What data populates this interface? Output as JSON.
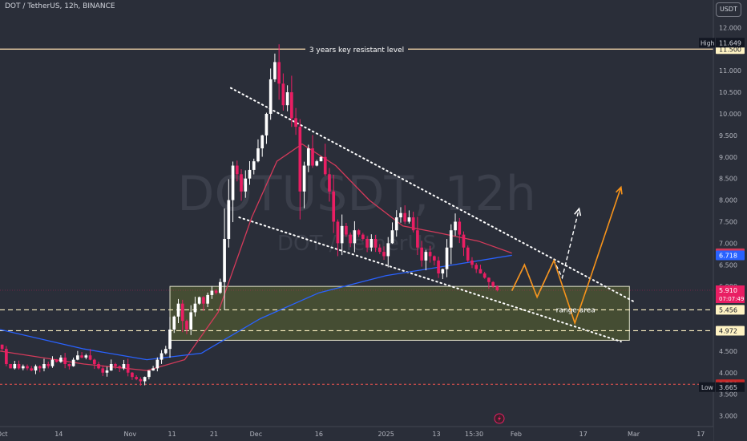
{
  "header": {
    "symbol_title": "DOT / TetherUS, 12h, BINANCE",
    "currency_badge": "USDT"
  },
  "watermark": {
    "symbol": "DOTUSDT, 12h",
    "pair": "DOT / TetherUS"
  },
  "colors": {
    "background": "#2a2e39",
    "candle_up": "#ffffff",
    "candle_down": "#e91e63",
    "ma_blue": "#2962ff",
    "ma_red": "#d43a5a",
    "resistance_line": "#ffe0b2",
    "range_fill": "#4a5233",
    "projection_orange": "#f7931a",
    "projection_white": "#ffffff",
    "low_line": "#ef5350"
  },
  "chart_data": {
    "type": "candlestick",
    "title": "DOT / TetherUS, 12h, BINANCE",
    "ylim": [
      2.9,
      12.3
    ],
    "y_ticks": [
      "12.000",
      "11.500",
      "11.000",
      "10.500",
      "10.000",
      "9.500",
      "9.000",
      "8.500",
      "8.000",
      "7.500",
      "7.000",
      "6.500",
      "6.000",
      "5.500",
      "5.000",
      "4.500",
      "4.000",
      "3.500",
      "3.000"
    ],
    "x_ticks": [
      {
        "label": "Oct",
        "t": 0.5
      },
      {
        "label": "14",
        "t": 14
      },
      {
        "label": "Nov",
        "t": 31
      },
      {
        "label": "11",
        "t": 41
      },
      {
        "label": "21",
        "t": 51
      },
      {
        "label": "Dec",
        "t": 61
      },
      {
        "label": "16",
        "t": 76
      },
      {
        "label": "2025",
        "t": 92
      },
      {
        "label": "13",
        "t": 104
      },
      {
        "label": "15:30",
        "t": 113
      },
      {
        "label": "Feb",
        "t": 123
      },
      {
        "label": "17",
        "t": 139
      },
      {
        "label": "Mar",
        "t": 151
      },
      {
        "label": "17",
        "t": 167
      }
    ],
    "price_path": [
      [
        0,
        4.55
      ],
      [
        1,
        4.2
      ],
      [
        2,
        4.1
      ],
      [
        3,
        4.2
      ],
      [
        4,
        4.1
      ],
      [
        5,
        4.15
      ],
      [
        6,
        4.1
      ],
      [
        7,
        4.05
      ],
      [
        8,
        4.15
      ],
      [
        9,
        4.1
      ],
      [
        10,
        4.2
      ],
      [
        11,
        4.15
      ],
      [
        12,
        4.3
      ],
      [
        13,
        4.25
      ],
      [
        14,
        4.35
      ],
      [
        15,
        4.2
      ],
      [
        16,
        4.15
      ],
      [
        17,
        4.3
      ],
      [
        18,
        4.4
      ],
      [
        19,
        4.35
      ],
      [
        20,
        4.4
      ],
      [
        21,
        4.3
      ],
      [
        22,
        4.2
      ],
      [
        23,
        4.1
      ],
      [
        24,
        4.0
      ],
      [
        25,
        4.05
      ],
      [
        26,
        4.2
      ],
      [
        27,
        4.15
      ],
      [
        28,
        4.1
      ],
      [
        29,
        4.2
      ],
      [
        30,
        4.0
      ],
      [
        31,
        3.9
      ],
      [
        32,
        3.85
      ],
      [
        33,
        3.8
      ],
      [
        34,
        3.9
      ],
      [
        35,
        4.05
      ],
      [
        36,
        4.1
      ],
      [
        37,
        4.3
      ],
      [
        38,
        4.45
      ],
      [
        39,
        4.55
      ],
      [
        40,
        5.0
      ],
      [
        41,
        5.3
      ],
      [
        42,
        5.6
      ],
      [
        43,
        5.2
      ],
      [
        44,
        5.0
      ],
      [
        45,
        5.4
      ],
      [
        46,
        5.6
      ],
      [
        47,
        5.75
      ],
      [
        48,
        5.6
      ],
      [
        49,
        5.8
      ],
      [
        50,
        5.9
      ],
      [
        51,
        5.85
      ],
      [
        52,
        6.1
      ],
      [
        53,
        7.1
      ],
      [
        54,
        8.0
      ],
      [
        55,
        8.8
      ],
      [
        56,
        8.6
      ],
      [
        57,
        8.2
      ],
      [
        58,
        8.5
      ],
      [
        59,
        8.7
      ],
      [
        60,
        8.9
      ],
      [
        61,
        9.2
      ],
      [
        62,
        9.5
      ],
      [
        63,
        10.0
      ],
      [
        64,
        10.8
      ],
      [
        65,
        11.2
      ],
      [
        66,
        10.7
      ],
      [
        67,
        10.2
      ],
      [
        68,
        10.5
      ],
      [
        69,
        9.9
      ],
      [
        70,
        9.7
      ],
      [
        71,
        8.2
      ],
      [
        72,
        8.8
      ],
      [
        73,
        9.2
      ],
      [
        74,
        8.8
      ],
      [
        75,
        8.9
      ],
      [
        76,
        9.0
      ],
      [
        77,
        8.6
      ],
      [
        78,
        8.2
      ],
      [
        79,
        7.5
      ],
      [
        80,
        7.0
      ],
      [
        81,
        7.4
      ],
      [
        82,
        7.2
      ],
      [
        83,
        7.0
      ],
      [
        84,
        7.3
      ],
      [
        85,
        7.2
      ],
      [
        86,
        7.1
      ],
      [
        87,
        6.9
      ],
      [
        88,
        7.1
      ],
      [
        89,
        6.9
      ],
      [
        90,
        6.8
      ],
      [
        91,
        6.7
      ],
      [
        92,
        7.0
      ],
      [
        93,
        7.3
      ],
      [
        94,
        7.6
      ],
      [
        95,
        7.7
      ],
      [
        96,
        7.5
      ],
      [
        97,
        7.6
      ],
      [
        98,
        7.3
      ],
      [
        99,
        6.9
      ],
      [
        100,
        6.6
      ],
      [
        101,
        6.8
      ],
      [
        102,
        6.7
      ],
      [
        103,
        6.6
      ],
      [
        104,
        6.3
      ],
      [
        105,
        6.4
      ],
      [
        106,
        6.9
      ],
      [
        107,
        7.3
      ],
      [
        108,
        7.5
      ],
      [
        109,
        7.2
      ],
      [
        110,
        6.9
      ],
      [
        111,
        6.6
      ],
      [
        112,
        6.5
      ],
      [
        113,
        6.4
      ],
      [
        114,
        6.3
      ],
      [
        115,
        6.2
      ],
      [
        116,
        6.1
      ],
      [
        117,
        6.0
      ],
      [
        118,
        5.91
      ]
    ],
    "current_price": "5.910",
    "countdown": "07:07:49",
    "resistance": {
      "value": 11.5,
      "label": "3 years key resistant level"
    },
    "high": {
      "label": "High",
      "value": "11.649"
    },
    "low": {
      "label": "Low",
      "value": "3.665"
    },
    "price_tags": [
      {
        "value": 11.5,
        "text": "11.500",
        "type": "key"
      },
      {
        "value": 5.456,
        "text": "5.456",
        "type": "key"
      },
      {
        "value": 4.972,
        "text": "4.972",
        "type": "key"
      },
      {
        "value": 6.768,
        "text": "6.768",
        "type": "red"
      },
      {
        "value": 6.718,
        "text": "6.718",
        "type": "blue"
      },
      {
        "value": 3.73,
        "text": "3.730",
        "type": "lowred"
      }
    ],
    "dashed_levels": [
      5.456,
      4.972
    ],
    "low_dashed_level": 3.73,
    "range_area": {
      "t_start": 40.5,
      "t_end": 150,
      "top": 6.0,
      "bottom": 4.75,
      "label": "range area"
    },
    "channel_upper": {
      "from": [
        55,
        10.6
      ],
      "to": [
        151,
        5.65
      ]
    },
    "channel_lower": {
      "from": [
        57,
        7.6
      ],
      "to": [
        148,
        4.72
      ]
    },
    "ma_blue": [
      [
        0,
        5.0
      ],
      [
        20,
        4.55
      ],
      [
        35,
        4.3
      ],
      [
        48,
        4.45
      ],
      [
        62,
        5.25
      ],
      [
        76,
        5.85
      ],
      [
        92,
        6.25
      ],
      [
        105,
        6.45
      ],
      [
        122,
        6.72
      ]
    ],
    "ma_red": [
      [
        0,
        4.5
      ],
      [
        20,
        4.2
      ],
      [
        35,
        4.05
      ],
      [
        44,
        4.3
      ],
      [
        52,
        5.4
      ],
      [
        60,
        7.6
      ],
      [
        66,
        8.9
      ],
      [
        72,
        9.3
      ],
      [
        80,
        8.8
      ],
      [
        88,
        8.0
      ],
      [
        96,
        7.4
      ],
      [
        104,
        7.25
      ],
      [
        114,
        7.05
      ],
      [
        122,
        6.77
      ]
    ],
    "projection_orange": [
      [
        122,
        5.9
      ],
      [
        125,
        6.5
      ],
      [
        128,
        5.75
      ],
      [
        132,
        6.6
      ],
      [
        137,
        5.15
      ],
      [
        140,
        6.0
      ],
      [
        148,
        8.3
      ]
    ],
    "projection_white": [
      [
        122,
        5.9
      ],
      [
        125,
        6.5
      ],
      [
        128,
        5.75
      ],
      [
        132,
        6.6
      ],
      [
        134,
        6.2
      ],
      [
        138,
        7.8
      ]
    ]
  }
}
